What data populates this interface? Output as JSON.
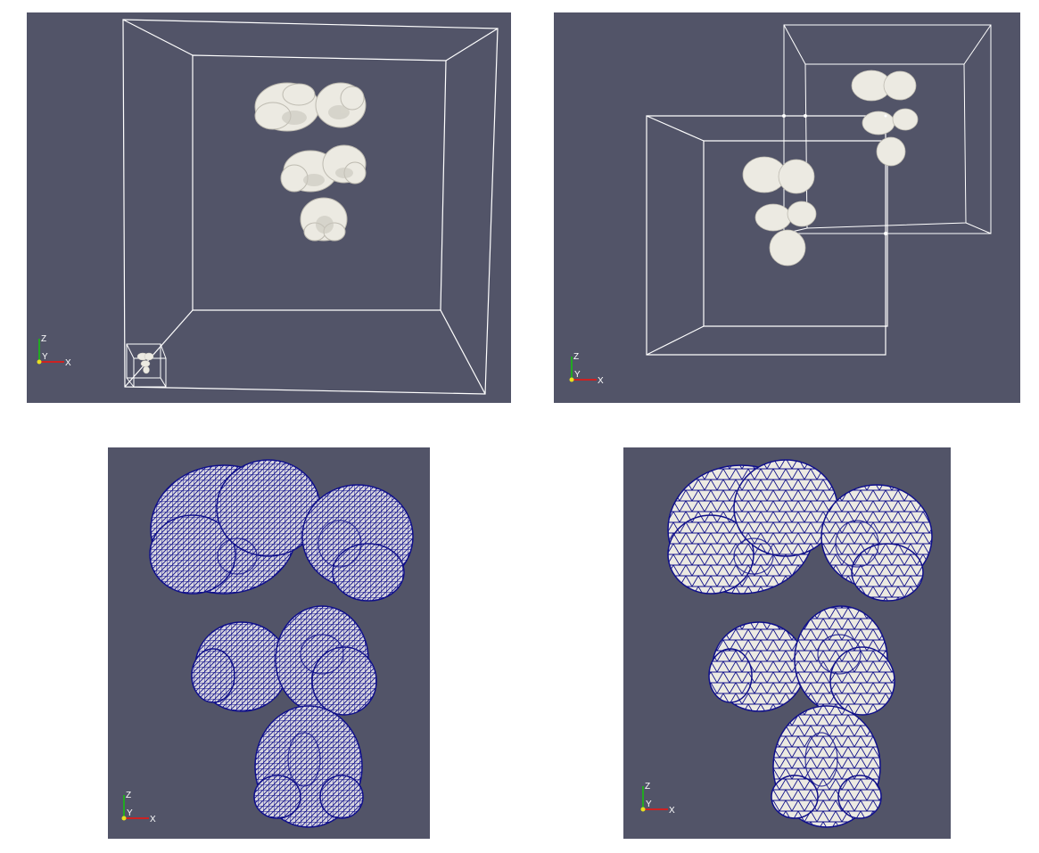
{
  "viewports": [
    {
      "id": "top-left",
      "mode": "surface"
    },
    {
      "id": "top-right",
      "mode": "surface"
    },
    {
      "id": "bottom-left",
      "mode": "wireframe-dense"
    },
    {
      "id": "bottom-right",
      "mode": "surface-with-edges"
    }
  ],
  "axes": {
    "z": "Z",
    "y": "Y",
    "x": "X"
  },
  "colors": {
    "background": "#525468",
    "surface": "#eceae2",
    "surface_shade": "#c9c6bc",
    "outline_box": "#ffffff",
    "mesh_edges": "#10108a",
    "axis_x": "#cc2222",
    "axis_y": "#e8e020",
    "axis_z": "#22aa22"
  }
}
